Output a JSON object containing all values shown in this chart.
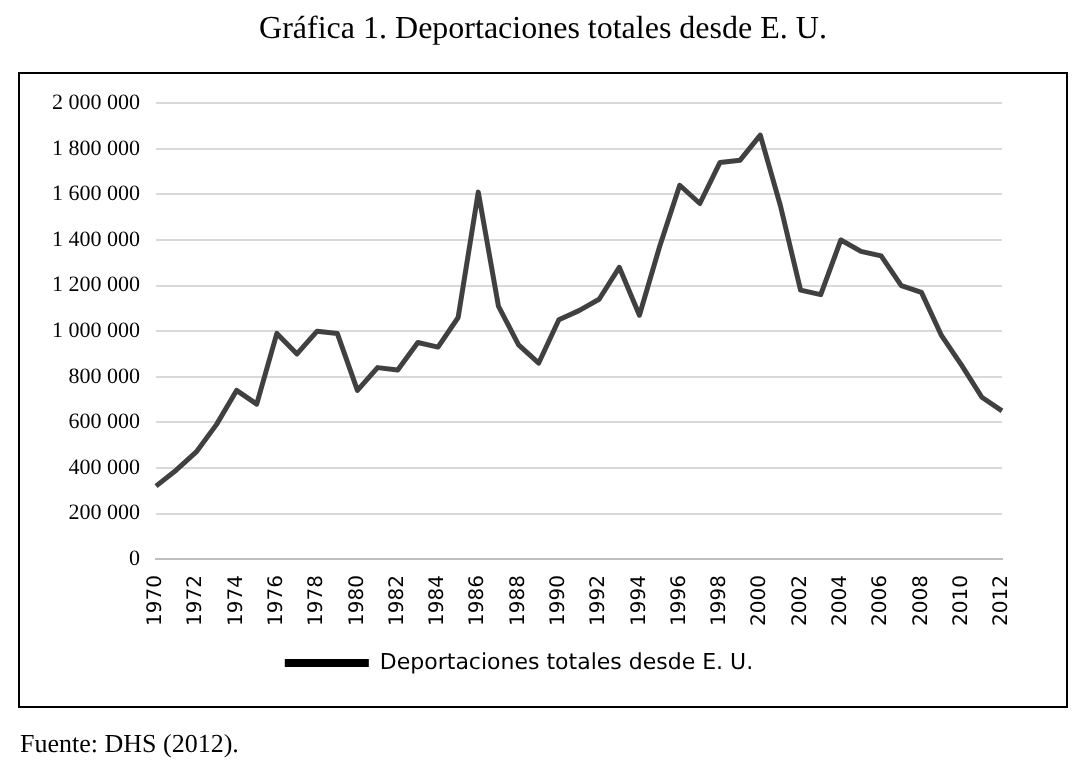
{
  "chart_data": {
    "type": "line",
    "title": "Gráfica 1. Deportaciones totales desde E. U.",
    "categories": [
      "1970",
      null,
      "1972",
      null,
      "1974",
      null,
      "1976",
      null,
      "1978",
      null,
      "1980",
      null,
      "1982",
      null,
      "1984",
      null,
      "1986",
      null,
      "1988",
      null,
      "1990",
      null,
      "1992",
      null,
      "1994",
      null,
      "1996",
      null,
      "1998",
      null,
      "2000",
      null,
      "2002",
      null,
      "2004",
      null,
      "2006",
      null,
      "2008",
      null,
      "2010",
      null,
      "2012"
    ],
    "series": [
      {
        "name": "Deportaciones totales desde E. U.",
        "color": "#404040",
        "values": [
          320000,
          390000,
          470000,
          590000,
          740000,
          680000,
          990000,
          900000,
          1000000,
          990000,
          740000,
          840000,
          830000,
          950000,
          930000,
          1060000,
          1610000,
          1110000,
          940000,
          860000,
          1050000,
          1090000,
          1140000,
          1280000,
          1070000,
          1370000,
          1640000,
          1560000,
          1740000,
          1750000,
          1860000,
          1550000,
          1180000,
          1160000,
          1400000,
          1350000,
          1330000,
          1200000,
          1170000,
          980000,
          850000,
          710000,
          650000
        ]
      }
    ],
    "ylim": [
      0,
      2000000
    ],
    "yticks": [
      {
        "value": 0,
        "label": "0"
      },
      {
        "value": 200000,
        "label": "200 000"
      },
      {
        "value": 400000,
        "label": "400 000"
      },
      {
        "value": 600000,
        "label": "600 000"
      },
      {
        "value": 800000,
        "label": "800 000"
      },
      {
        "value": 1000000,
        "label": "1 000 000"
      },
      {
        "value": 1200000,
        "label": "1 200 000"
      },
      {
        "value": 1400000,
        "label": "1 400 000"
      },
      {
        "value": 1600000,
        "label": "1 600 000"
      },
      {
        "value": 1800000,
        "label": "1 800 000"
      },
      {
        "value": 2000000,
        "label": "2 000 000"
      }
    ],
    "grid": "y",
    "legend": "bottom",
    "marker": "none",
    "line_style": "solid",
    "annotations": [
      "Fuente: DHS (2012)."
    ]
  }
}
